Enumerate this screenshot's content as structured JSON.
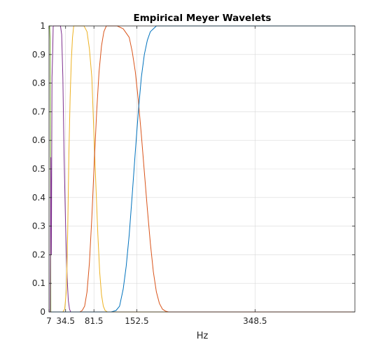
{
  "chart_data": {
    "type": "line",
    "title": "Empirical Meyer Wavelets",
    "xlabel": "Hz",
    "ylabel": "",
    "xlim": [
      7,
      514
    ],
    "ylim": [
      0,
      1
    ],
    "grid": true,
    "legend": "none",
    "xticks": [
      {
        "value": 7,
        "label": "7"
      },
      {
        "value": 34.5,
        "label": "34.5"
      },
      {
        "value": 81.5,
        "label": "81.5"
      },
      {
        "value": 152.5,
        "label": "152.5"
      },
      {
        "value": 348.5,
        "label": "348.5"
      }
    ],
    "yticks": [
      {
        "value": 0,
        "label": "0"
      },
      {
        "value": 0.1,
        "label": "0.1"
      },
      {
        "value": 0.2,
        "label": "0.2"
      },
      {
        "value": 0.3,
        "label": "0.3"
      },
      {
        "value": 0.4,
        "label": "0.4"
      },
      {
        "value": 0.5,
        "label": "0.5"
      },
      {
        "value": 0.6,
        "label": "0.6"
      },
      {
        "value": 0.7,
        "label": "0.7"
      },
      {
        "value": 0.8,
        "label": "0.8"
      },
      {
        "value": 0.9,
        "label": "0.9"
      },
      {
        "value": 1,
        "label": "1"
      }
    ],
    "series": [
      {
        "color": "#77ac30",
        "x": [
          7,
          8,
          9,
          10,
          12,
          14,
          20,
          100,
          514
        ],
        "y": [
          1,
          1,
          0.95,
          0,
          0,
          0,
          0,
          0,
          0
        ]
      },
      {
        "color": "#7e2f8e",
        "x": [
          7,
          9,
          10,
          11,
          12,
          13,
          14,
          15,
          16,
          17,
          20,
          24,
          26,
          28,
          30,
          32,
          34.5,
          37,
          39,
          41,
          43,
          45,
          47,
          49,
          514
        ],
        "y": [
          0,
          0,
          0.54,
          0.2,
          0.82,
          0.9,
          1,
          1,
          1,
          1,
          1,
          1,
          1,
          0.97,
          0.82,
          0.55,
          0.3,
          0.12,
          0.04,
          0.01,
          0,
          0,
          0,
          0,
          0
        ]
      },
      {
        "color": "#edb120",
        "x": [
          7,
          30,
          33,
          36,
          38,
          40,
          42,
          44,
          46,
          48,
          50,
          53,
          56,
          60,
          65,
          70,
          74,
          78,
          81.5,
          85,
          88,
          91,
          94,
          97,
          100,
          104,
          514
        ],
        "y": [
          0,
          0,
          0.01,
          0.08,
          0.28,
          0.55,
          0.75,
          0.88,
          0.96,
          1,
          1,
          1,
          1,
          1,
          1,
          0.98,
          0.92,
          0.82,
          0.62,
          0.43,
          0.27,
          0.14,
          0.06,
          0.02,
          0.005,
          0,
          0
        ]
      },
      {
        "color": "#d95319",
        "x": [
          7,
          58,
          62,
          66,
          70,
          74,
          78,
          82,
          86,
          90,
          94,
          98,
          102,
          110,
          120,
          130,
          140,
          145,
          150,
          155,
          160,
          165,
          170,
          175,
          180,
          185,
          190,
          195,
          200,
          205,
          210,
          514
        ],
        "y": [
          0,
          0,
          0.005,
          0.02,
          0.07,
          0.17,
          0.33,
          0.52,
          0.7,
          0.84,
          0.93,
          0.98,
          1,
          1,
          1,
          0.99,
          0.96,
          0.91,
          0.84,
          0.74,
          0.62,
          0.49,
          0.36,
          0.24,
          0.14,
          0.07,
          0.03,
          0.01,
          0.003,
          0,
          0,
          0
        ]
      },
      {
        "color": "#0072bd",
        "x": [
          7,
          110,
          118,
          124,
          130,
          135,
          140,
          145,
          150,
          155,
          160,
          165,
          170,
          175,
          180,
          185,
          190,
          195,
          200,
          514
        ],
        "y": [
          0,
          0,
          0.005,
          0.02,
          0.08,
          0.16,
          0.27,
          0.41,
          0.56,
          0.7,
          0.82,
          0.9,
          0.95,
          0.98,
          0.99,
          1,
          1,
          1,
          1,
          1
        ]
      }
    ]
  }
}
